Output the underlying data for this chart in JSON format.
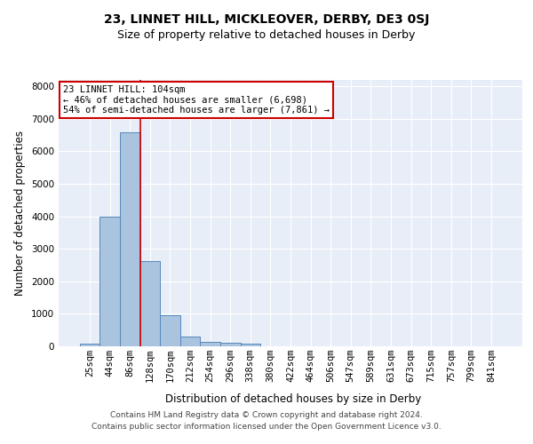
{
  "title": "23, LINNET HILL, MICKLEOVER, DERBY, DE3 0SJ",
  "subtitle": "Size of property relative to detached houses in Derby",
  "xlabel": "Distribution of detached houses by size in Derby",
  "ylabel": "Number of detached properties",
  "footer_line1": "Contains HM Land Registry data © Crown copyright and database right 2024.",
  "footer_line2": "Contains public sector information licensed under the Open Government Licence v3.0.",
  "bin_labels": [
    "25sqm",
    "44sqm",
    "86sqm",
    "128sqm",
    "170sqm",
    "212sqm",
    "254sqm",
    "296sqm",
    "338sqm",
    "380sqm",
    "422sqm",
    "464sqm",
    "506sqm",
    "547sqm",
    "589sqm",
    "631sqm",
    "673sqm",
    "715sqm",
    "757sqm",
    "799sqm",
    "841sqm"
  ],
  "bar_values": [
    70,
    3980,
    6580,
    2620,
    950,
    300,
    130,
    110,
    90,
    0,
    0,
    0,
    0,
    0,
    0,
    0,
    0,
    0,
    0,
    0,
    0
  ],
  "bar_color": "#aac4e0",
  "bar_edge_color": "#5588bb",
  "annotation_line1": "23 LINNET HILL: 104sqm",
  "annotation_line2": "← 46% of detached houses are smaller (6,698)",
  "annotation_line3": "54% of semi-detached houses are larger (7,861) →",
  "vline_color": "#cc0000",
  "vline_x": 2.5,
  "ylim": [
    0,
    8200
  ],
  "yticks": [
    0,
    1000,
    2000,
    3000,
    4000,
    5000,
    6000,
    7000,
    8000
  ],
  "plot_bg_color": "#e8eef8",
  "title_fontsize": 10,
  "subtitle_fontsize": 9,
  "axis_label_fontsize": 8.5,
  "tick_fontsize": 7.5,
  "annotation_fontsize": 7.5,
  "footer_fontsize": 6.5
}
